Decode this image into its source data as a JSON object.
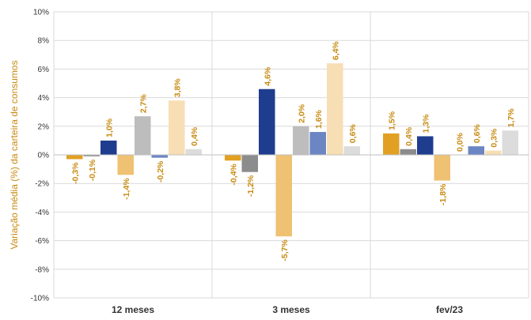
{
  "chart_data": {
    "type": "bar",
    "ylabel": "Variação média (%) da carteira de consumos",
    "ylim": [
      -10,
      10
    ],
    "yticks": [
      "10%",
      "8%",
      "6%",
      "4%",
      "2%",
      "0%",
      "-2%",
      "-4%",
      "-6%",
      "-8%",
      "-10%"
    ],
    "categories": [
      "12 meses",
      "3 meses",
      "fev/23"
    ],
    "grid": "horizontal",
    "series": [
      {
        "color": "#e2a022",
        "values": [
          -0.3,
          -0.4,
          1.5
        ],
        "labels": [
          "-0,3%",
          "-0,4%",
          "1,5%"
        ]
      },
      {
        "color": "#8c8c8c",
        "values": [
          -0.1,
          -1.2,
          0.4
        ],
        "labels": [
          "-0,1%",
          "-1,2%",
          "0,4%"
        ]
      },
      {
        "color": "#1f3d8f",
        "values": [
          1.0,
          4.6,
          1.3
        ],
        "labels": [
          "1,0%",
          "4,6%",
          "1,3%"
        ]
      },
      {
        "color": "#efc173",
        "values": [
          -1.4,
          -5.7,
          -1.8
        ],
        "labels": [
          "-1,4%",
          "-5,7%",
          "-1,8%"
        ]
      },
      {
        "color": "#bdbdbd",
        "values": [
          2.7,
          2.0,
          0.0
        ],
        "labels": [
          "2,7%",
          "2,0%",
          "0,0%"
        ]
      },
      {
        "color": "#6c86c4",
        "values": [
          -0.2,
          1.6,
          0.6
        ],
        "labels": [
          "-0,2%",
          "1,6%",
          "0,6%"
        ]
      },
      {
        "color": "#f8deb4",
        "values": [
          3.8,
          6.4,
          0.3
        ],
        "labels": [
          "3,8%",
          "6,4%",
          "0,3%"
        ]
      },
      {
        "color": "#dcdcdc",
        "values": [
          0.4,
          0.6,
          1.7
        ],
        "labels": [
          "0,4%",
          "0,6%",
          "1,7%"
        ]
      }
    ]
  }
}
